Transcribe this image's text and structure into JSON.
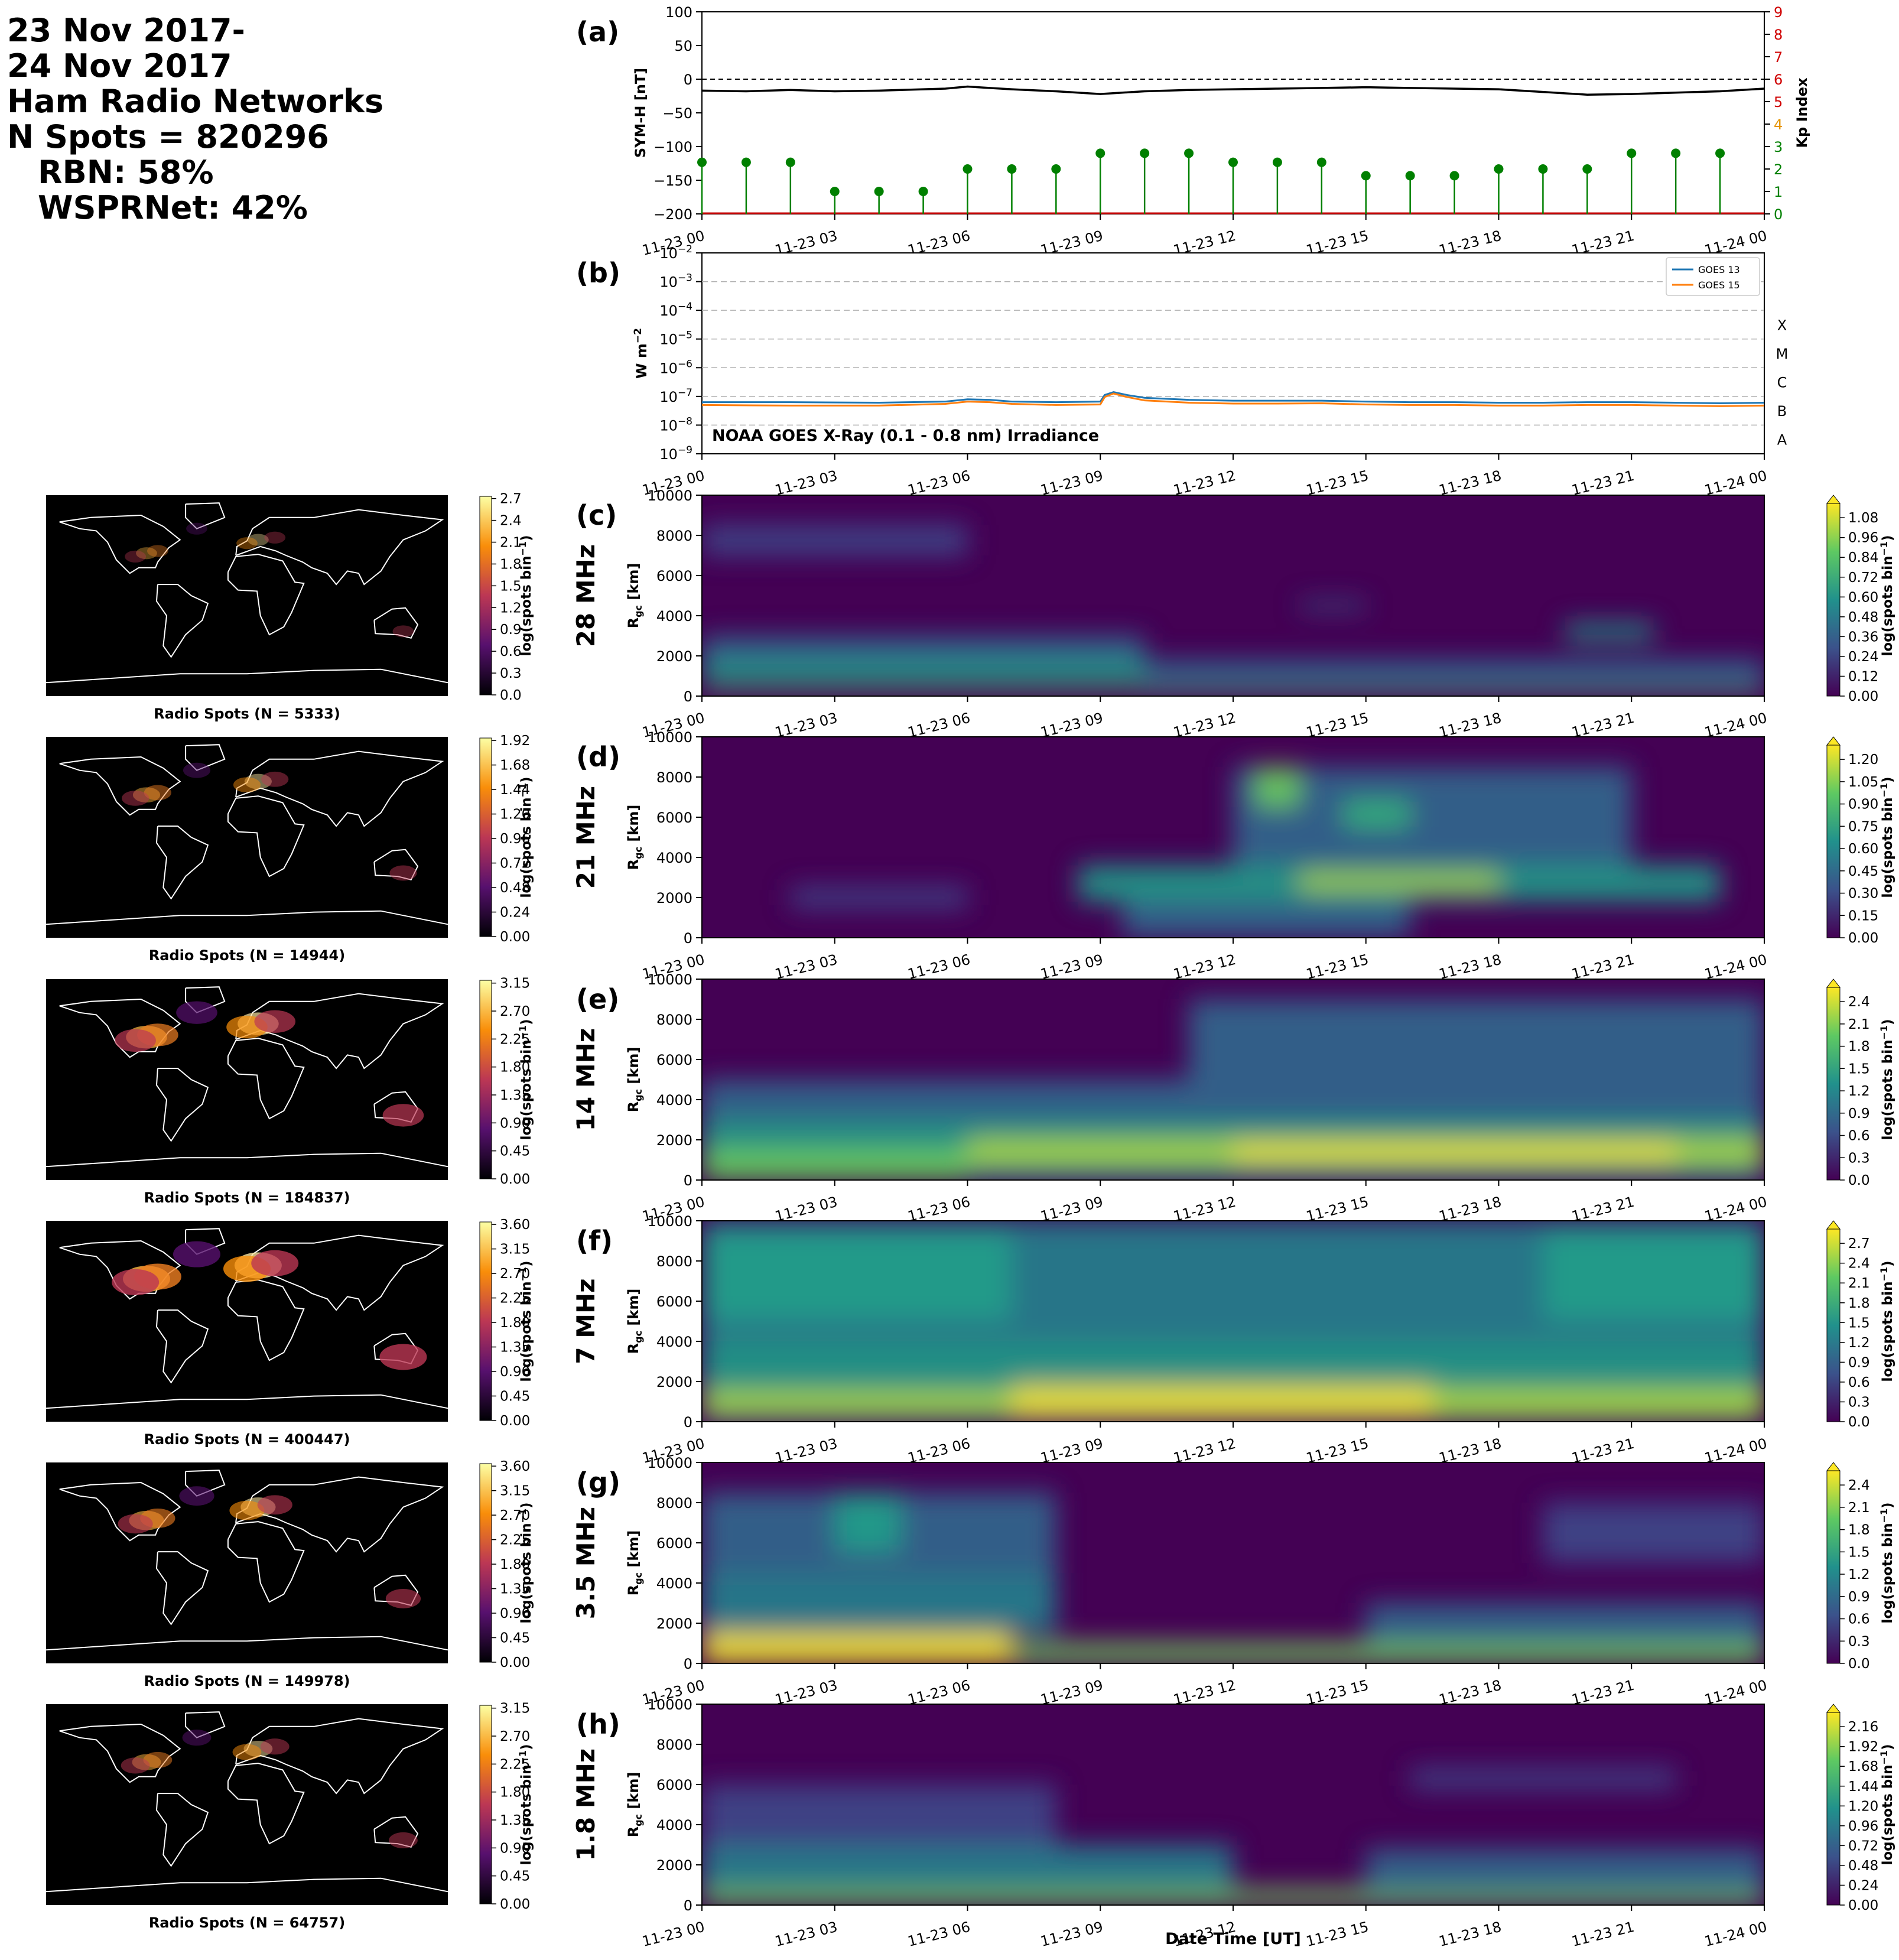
{
  "header": {
    "date_start": "23 Nov 2017-",
    "date_end": "24 Nov 2017",
    "networks": "Ham Radio Networks",
    "n_spots": "N Spots = 820296",
    "rbn": "RBN: 58%",
    "wsprnet": "WSPRNet: 42%"
  },
  "time_ticks": [
    "11-23 00",
    "11-23 03",
    "11-23 06",
    "11-23 09",
    "11-23 12",
    "11-23 15",
    "11-23 18",
    "11-23 21",
    "11-24 00"
  ],
  "xlabel": "Date Time [UT]",
  "colors": {
    "symh": "#000000",
    "kp": "#008000",
    "goes13": "#1f77b4",
    "goes15": "#ff7f0e"
  },
  "chart_data": [
    {
      "type": "line",
      "panel_label": "(a)",
      "ylabel": "SYM-H [nT]",
      "ylim": [
        -200,
        100
      ],
      "yticks": [
        100,
        50,
        0,
        -50,
        -100,
        -150,
        -200
      ],
      "symh_x_hours": [
        0,
        1,
        2,
        3,
        4,
        5,
        5.5,
        6,
        6.5,
        7,
        8,
        9,
        10,
        11,
        12,
        13,
        14,
        15,
        16,
        17,
        18,
        19,
        20,
        21,
        22,
        23,
        24
      ],
      "symh_values": [
        -17,
        -18,
        -16,
        -18,
        -17,
        -15,
        -14,
        -11,
        -13,
        -15,
        -18,
        -22,
        -18,
        -16,
        -15,
        -14,
        -13,
        -12,
        -13,
        -14,
        -15,
        -19,
        -23,
        -22,
        -20,
        -18,
        -14
      ],
      "y2label": "Kp Index",
      "y2lim": [
        0,
        9
      ],
      "y2ticks": [
        0,
        1,
        2,
        3,
        4,
        5,
        6,
        7,
        8,
        9
      ],
      "kp_x_hours": [
        0,
        1,
        2,
        3,
        4,
        5,
        6,
        7,
        8,
        9,
        10,
        11,
        12,
        13,
        14,
        15,
        16,
        17,
        18,
        19,
        20,
        21,
        22,
        23
      ],
      "kp_values": [
        2.3,
        2.3,
        2.3,
        1.0,
        1.0,
        1.0,
        2.0,
        2.0,
        2.0,
        2.7,
        2.7,
        2.7,
        2.3,
        2.3,
        2.3,
        1.7,
        1.7,
        1.7,
        2.0,
        2.0,
        2.0,
        2.7,
        2.7,
        2.7
      ],
      "xlim_hours": [
        0,
        24
      ]
    },
    {
      "type": "line",
      "panel_label": "(b)",
      "ylabel": "W m",
      "ylabel_sup": "−2",
      "scale": "log",
      "ylim": [
        1e-09,
        0.01
      ],
      "ytick_exponents": [
        -9,
        -8,
        -7,
        -6,
        -5,
        -4,
        -3,
        -2
      ],
      "flare_classes": [
        {
          "label": "X",
          "exp": -4
        },
        {
          "label": "M",
          "exp": -5
        },
        {
          "label": "C",
          "exp": -6
        },
        {
          "label": "B",
          "exp": -7
        },
        {
          "label": "A",
          "exp": -8
        }
      ],
      "annotation": "NOAA GOES X-Ray (0.1 - 0.8 nm) Irradiance",
      "series": [
        {
          "name": "GOES 13",
          "x_hours": [
            0,
            2,
            4,
            5.5,
            6,
            6.5,
            7,
            8,
            9,
            9.1,
            9.3,
            9.6,
            10,
            11,
            12,
            13,
            14,
            15,
            16,
            17,
            18,
            19,
            20,
            21,
            22,
            23,
            24
          ],
          "log10_values": [
            -7.2,
            -7.2,
            -7.22,
            -7.18,
            -7.1,
            -7.12,
            -7.18,
            -7.2,
            -7.18,
            -6.95,
            -6.85,
            -6.95,
            -7.05,
            -7.12,
            -7.15,
            -7.15,
            -7.15,
            -7.18,
            -7.2,
            -7.2,
            -7.22,
            -7.22,
            -7.2,
            -7.2,
            -7.22,
            -7.24,
            -7.22
          ]
        },
        {
          "name": "GOES 15",
          "x_hours": [
            0,
            2,
            4,
            5.5,
            6,
            6.5,
            7,
            8,
            9,
            9.1,
            9.3,
            9.6,
            10,
            11,
            12,
            13,
            14,
            15,
            16,
            17,
            18,
            19,
            20,
            21,
            22,
            23,
            24
          ],
          "log10_values": [
            -7.3,
            -7.32,
            -7.32,
            -7.26,
            -7.18,
            -7.2,
            -7.26,
            -7.3,
            -7.28,
            -7.02,
            -6.9,
            -7.02,
            -7.14,
            -7.22,
            -7.25,
            -7.25,
            -7.24,
            -7.28,
            -7.3,
            -7.3,
            -7.32,
            -7.32,
            -7.3,
            -7.3,
            -7.32,
            -7.34,
            -7.32
          ]
        }
      ],
      "legend_location": "upper right",
      "xlim_hours": [
        0,
        24
      ]
    },
    {
      "type": "heatmap",
      "panel_label": "(c)",
      "band": "28 MHz",
      "ylabel": "R",
      "ylabel_sub": "gc",
      "ylabel_unit": "[km]",
      "ylim": [
        0,
        10000
      ],
      "yticks": [
        0,
        2000,
        4000,
        6000,
        8000,
        10000
      ],
      "colorbar": {
        "label": "log(spots bin",
        "label_sup": "−1",
        "ticks": [
          "0.00",
          "0.12",
          "0.24",
          "0.36",
          "0.48",
          "0.60",
          "0.72",
          "0.84",
          "0.96",
          "1.08"
        ]
      },
      "blobs": [
        {
          "t": [
            0,
            24
          ],
          "r": [
            0,
            200
          ],
          "v": 0.9
        },
        {
          "t": [
            0,
            10
          ],
          "r": [
            600,
            1800
          ],
          "v": 0.55
        },
        {
          "t": [
            0,
            10
          ],
          "r": [
            1800,
            3000
          ],
          "v": 0.35
        },
        {
          "t": [
            10,
            24
          ],
          "r": [
            400,
            1800
          ],
          "v": 0.4
        },
        {
          "t": [
            0,
            6
          ],
          "r": [
            7000,
            8500
          ],
          "v": 0.3
        },
        {
          "t": [
            19.5,
            21.5
          ],
          "r": [
            2800,
            3600
          ],
          "v": 0.55
        },
        {
          "t": [
            13.5,
            15
          ],
          "r": [
            4300,
            4700
          ],
          "v": 0.35
        }
      ],
      "map_caption": "Radio Spots (N = 5333)",
      "map_colorbar_ticks": [
        "0.0",
        "0.3",
        "0.6",
        "0.9",
        "1.2",
        "1.5",
        "1.8",
        "2.1",
        "2.4",
        "2.7"
      ]
    },
    {
      "type": "heatmap",
      "panel_label": "(d)",
      "band": "21 MHz",
      "ylabel": "R",
      "ylabel_sub": "gc",
      "ylabel_unit": "[km]",
      "ylim": [
        0,
        10000
      ],
      "yticks": [
        0,
        2000,
        4000,
        6000,
        8000,
        10000
      ],
      "colorbar": {
        "label": "log(spots bin",
        "label_sup": "−1",
        "ticks": [
          "0.00",
          "0.15",
          "0.30",
          "0.45",
          "0.60",
          "0.75",
          "0.90",
          "1.05",
          "1.20"
        ]
      },
      "blobs": [
        {
          "t": [
            8.5,
            23
          ],
          "r": [
            1800,
            3600
          ],
          "v": 0.65
        },
        {
          "t": [
            13.5,
            18
          ],
          "r": [
            2400,
            3200
          ],
          "v": 1.0
        },
        {
          "t": [
            9.5,
            16
          ],
          "r": [
            0,
            1800
          ],
          "v": 0.45
        },
        {
          "t": [
            12,
            21
          ],
          "r": [
            3600,
            8500
          ],
          "v": 0.4
        },
        {
          "t": [
            12.5,
            13.5
          ],
          "r": [
            6500,
            8500
          ],
          "v": 0.95
        },
        {
          "t": [
            14.5,
            16
          ],
          "r": [
            5500,
            6800
          ],
          "v": 0.75
        },
        {
          "t": [
            2,
            6
          ],
          "r": [
            1500,
            2500
          ],
          "v": 0.3
        }
      ],
      "map_caption": "Radio Spots (N = 14944)",
      "map_colorbar_ticks": [
        "0.00",
        "0.24",
        "0.48",
        "0.72",
        "0.96",
        "1.20",
        "1.44",
        "1.68",
        "1.92"
      ]
    },
    {
      "type": "heatmap",
      "panel_label": "(e)",
      "band": "14 MHz",
      "ylabel": "R",
      "ylabel_sub": "gc",
      "ylabel_unit": "[km]",
      "ylim": [
        0,
        10000
      ],
      "yticks": [
        0,
        2000,
        4000,
        6000,
        8000,
        10000
      ],
      "colorbar": {
        "label": "log(spots bin",
        "label_sup": "−1",
        "ticks": [
          "0.0",
          "0.3",
          "0.6",
          "0.9",
          "1.2",
          "1.5",
          "1.8",
          "2.1",
          "2.4"
        ]
      },
      "blobs": [
        {
          "t": [
            0,
            24
          ],
          "r": [
            0,
            3000
          ],
          "v": 1.4
        },
        {
          "t": [
            6,
            24
          ],
          "r": [
            800,
            2000
          ],
          "v": 2.0
        },
        {
          "t": [
            12,
            22
          ],
          "r": [
            1000,
            1800
          ],
          "v": 2.4
        },
        {
          "t": [
            0,
            24
          ],
          "r": [
            3000,
            5000
          ],
          "v": 0.7
        },
        {
          "t": [
            11,
            24
          ],
          "r": [
            5000,
            9000
          ],
          "v": 0.9
        },
        {
          "t": [
            0,
            6
          ],
          "r": [
            0,
            1500
          ],
          "v": 1.8
        }
      ],
      "map_caption": "Radio Spots (N = 184837)",
      "map_colorbar_ticks": [
        "0.00",
        "0.45",
        "0.90",
        "1.35",
        "1.80",
        "2.25",
        "2.70",
        "3.15"
      ]
    },
    {
      "type": "heatmap",
      "panel_label": "(f)",
      "band": "7 MHz",
      "ylabel": "R",
      "ylabel_sub": "gc",
      "ylabel_unit": "[km]",
      "ylim": [
        0,
        10000
      ],
      "yticks": [
        0,
        2000,
        4000,
        6000,
        8000,
        10000
      ],
      "colorbar": {
        "label": "log(spots bin",
        "label_sup": "−1",
        "ticks": [
          "0.0",
          "0.3",
          "0.6",
          "0.9",
          "1.2",
          "1.5",
          "1.8",
          "2.1",
          "2.4",
          "2.7"
        ]
      },
      "blobs": [
        {
          "t": [
            0,
            24
          ],
          "r": [
            0,
            4000
          ],
          "v": 1.6
        },
        {
          "t": [
            7,
            16.5
          ],
          "r": [
            200,
            1800
          ],
          "v": 2.9
        },
        {
          "t": [
            0,
            7
          ],
          "r": [
            400,
            1500
          ],
          "v": 2.3
        },
        {
          "t": [
            16.5,
            24
          ],
          "r": [
            300,
            1600
          ],
          "v": 2.3
        },
        {
          "t": [
            0,
            24
          ],
          "r": [
            4000,
            10000
          ],
          "v": 1.1
        },
        {
          "t": [
            0,
            7
          ],
          "r": [
            5000,
            9500
          ],
          "v": 1.5
        },
        {
          "t": [
            19,
            24
          ],
          "r": [
            5000,
            9500
          ],
          "v": 1.4
        }
      ],
      "map_caption": "Radio Spots (N = 400447)",
      "map_colorbar_ticks": [
        "0.00",
        "0.45",
        "0.90",
        "1.35",
        "1.80",
        "2.25",
        "2.70",
        "3.15",
        "3.60"
      ]
    },
    {
      "type": "heatmap",
      "panel_label": "(g)",
      "band": "3.5 MHz",
      "ylabel": "R",
      "ylabel_sub": "gc",
      "ylabel_unit": "[km]",
      "ylim": [
        0,
        10000
      ],
      "yticks": [
        0,
        2000,
        4000,
        6000,
        8000,
        10000
      ],
      "colorbar": {
        "label": "log(spots bin",
        "label_sup": "−1",
        "ticks": [
          "0.0",
          "0.3",
          "0.6",
          "0.9",
          "1.2",
          "1.5",
          "1.8",
          "2.1",
          "2.4"
        ]
      },
      "blobs": [
        {
          "t": [
            0,
            24
          ],
          "r": [
            0,
            1000
          ],
          "v": 1.9
        },
        {
          "t": [
            0,
            7
          ],
          "r": [
            0,
            1500
          ],
          "v": 2.4
        },
        {
          "t": [
            0,
            8
          ],
          "r": [
            1500,
            4500
          ],
          "v": 1.1
        },
        {
          "t": [
            0,
            8
          ],
          "r": [
            4500,
            8500
          ],
          "v": 0.8
        },
        {
          "t": [
            3,
            4.5
          ],
          "r": [
            5500,
            8500
          ],
          "v": 1.3
        },
        {
          "t": [
            15,
            24
          ],
          "r": [
            1000,
            3000
          ],
          "v": 0.9
        },
        {
          "t": [
            19,
            24
          ],
          "r": [
            5000,
            8000
          ],
          "v": 0.6
        }
      ],
      "map_caption": "Radio Spots (N = 149978)",
      "map_colorbar_ticks": [
        "0.00",
        "0.45",
        "0.90",
        "1.35",
        "1.80",
        "2.25",
        "2.70",
        "3.15",
        "3.60"
      ]
    },
    {
      "type": "heatmap",
      "panel_label": "(h)",
      "band": "1.8 MHz",
      "ylabel": "R",
      "ylabel_sub": "gc",
      "ylabel_unit": "[km]",
      "ylim": [
        0,
        10000
      ],
      "yticks": [
        0,
        2000,
        4000,
        6000,
        8000,
        10000
      ],
      "colorbar": {
        "label": "log(spots bin",
        "label_sup": "−1",
        "ticks": [
          "0.00",
          "0.24",
          "0.48",
          "0.72",
          "0.96",
          "1.20",
          "1.44",
          "1.68",
          "1.92",
          "2.16"
        ]
      },
      "blobs": [
        {
          "t": [
            0,
            24
          ],
          "r": [
            0,
            800
          ],
          "v": 1.8
        },
        {
          "t": [
            0,
            12
          ],
          "r": [
            800,
            3000
          ],
          "v": 0.9
        },
        {
          "t": [
            15,
            24
          ],
          "r": [
            600,
            2800
          ],
          "v": 0.8
        },
        {
          "t": [
            0,
            8
          ],
          "r": [
            3000,
            6000
          ],
          "v": 0.5
        },
        {
          "t": [
            16,
            22
          ],
          "r": [
            5800,
            6800
          ],
          "v": 0.5
        }
      ],
      "map_caption": "Radio Spots (N = 64757)",
      "map_colorbar_ticks": [
        "0.00",
        "0.45",
        "0.90",
        "1.35",
        "1.80",
        "2.25",
        "2.70",
        "3.15"
      ]
    }
  ]
}
